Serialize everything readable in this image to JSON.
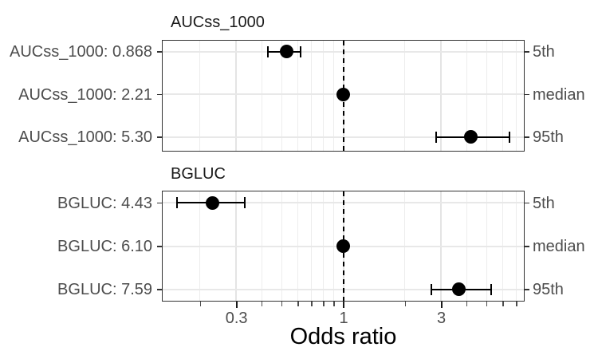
{
  "chart_data": {
    "type": "forest",
    "xlabel": "Odds ratio",
    "x_axis": {
      "scale": "log10",
      "major_ticks": [
        0.3,
        1,
        3
      ],
      "major_tick_labels": [
        "0.3",
        "1",
        "3"
      ],
      "minor_ticks": [
        0.2,
        0.4,
        0.5,
        0.6,
        0.7,
        0.8,
        0.9,
        2,
        4,
        5,
        6,
        7
      ],
      "range": [
        0.13,
        7.6
      ]
    },
    "reference_line_x": 1,
    "right_axis_labels": [
      "5th",
      "median",
      "95th"
    ],
    "panels": [
      {
        "title": "AUCss_1000",
        "rows": [
          {
            "label": "AUCss_1000: 0.868",
            "percentile": "5th",
            "or": 0.53,
            "ci_low": 0.43,
            "ci_high": 0.62
          },
          {
            "label": "AUCss_1000: 2.21",
            "percentile": "median",
            "or": 1.0,
            "ci_low": null,
            "ci_high": null
          },
          {
            "label": "AUCss_1000: 5.30",
            "percentile": "95th",
            "or": 4.2,
            "ci_low": 2.85,
            "ci_high": 6.45
          }
        ]
      },
      {
        "title": "BGLUC",
        "rows": [
          {
            "label": "BGLUC: 4.43",
            "percentile": "5th",
            "or": 0.23,
            "ci_low": 0.155,
            "ci_high": 0.33
          },
          {
            "label": "BGLUC: 6.10",
            "percentile": "median",
            "or": 1.0,
            "ci_low": null,
            "ci_high": null
          },
          {
            "label": "BGLUC: 7.59",
            "percentile": "95th",
            "or": 3.65,
            "ci_low": 2.7,
            "ci_high": 5.25
          }
        ]
      }
    ],
    "colors": {
      "point": "#000000",
      "error_bar": "#000000",
      "reference_line": "#000000",
      "grid": "#e8e8e8",
      "panel_border": "#333333",
      "axis_text": "#4d4d4d",
      "title_text": "#1a1a1a"
    }
  }
}
